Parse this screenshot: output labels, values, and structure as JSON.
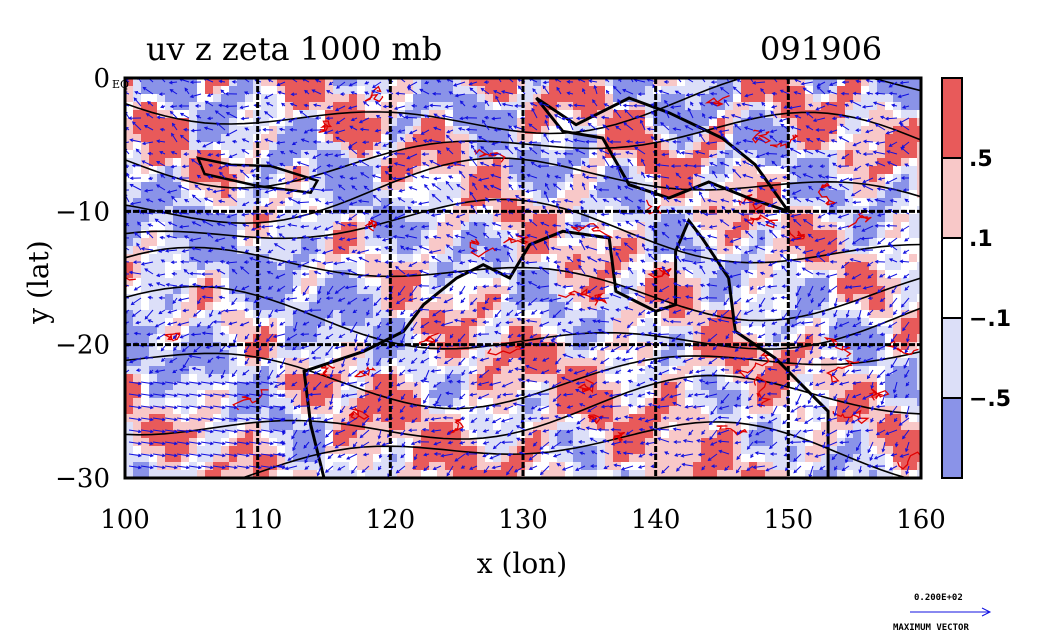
{
  "chart_data": {
    "type": "heatmap",
    "title_left": "uv z zeta 1000 mb",
    "title_right": "091906",
    "xlabel": "x (lon)",
    "ylabel": "y (lat)",
    "xlim": [
      100,
      160
    ],
    "ylim": [
      -30,
      0
    ],
    "x_ticks": [
      100,
      110,
      120,
      130,
      140,
      150,
      160
    ],
    "x_tick_labels": [
      "100",
      "110",
      "120",
      "130",
      "140",
      "150",
      "160"
    ],
    "y_ticks": [
      0,
      -10,
      -20,
      -30
    ],
    "y_tick_labels": [
      "0",
      "−10",
      "−20",
      "−30"
    ],
    "eq_label": "EQ",
    "grid": true,
    "fields": [
      "wind vectors (u,v)",
      "geopotential height z (contours)",
      "relative vorticity zeta (shaded)"
    ],
    "colorbar": {
      "levels": [
        -0.5,
        -0.1,
        0.1,
        0.5
      ],
      "labels": [
        ".5",
        ".1",
        "−.1",
        "−.5"
      ],
      "colors": [
        "#e85a5a",
        "#f8c8c8",
        "#ffffff",
        "#dcdff8",
        "#8a93e8"
      ]
    },
    "vector_key": {
      "value": "0.200E+02",
      "label": "MAXIMUM VECTOR"
    }
  },
  "colors": {
    "positive_strong": "#e85a5a",
    "positive_weak": "#f8c8c8",
    "negative_weak": "#dcdff8",
    "negative_strong": "#8a93e8",
    "vector": "#1010e0",
    "contour_red": "#e00000",
    "contour_black": "#000000"
  }
}
